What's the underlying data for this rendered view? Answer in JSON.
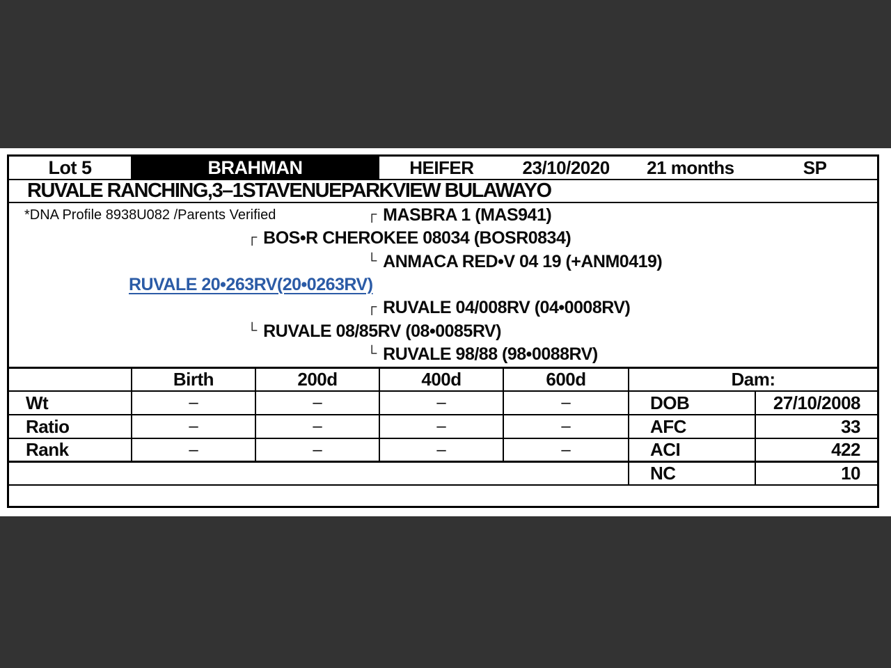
{
  "page": {
    "letterbox_color": "#333333",
    "paper_color": "#ffffff",
    "link_color": "#2b5ba6"
  },
  "header": {
    "lot": "Lot 5",
    "breed": "BRAHMAN",
    "sex": "HEIFER",
    "birth_date": "23/10/2020",
    "age": "21 months",
    "code": "SP"
  },
  "address": "RUVALE RANCHING,3–1STAVENUEPARKVIEW  BULAWAYO",
  "pedigree": {
    "dna_line": "*DNA Profile 8938U082 /Parents Verified",
    "animal": "RUVALE 20•263RV(20•0263RV)",
    "sire_sire": "MASBRA 1 (MAS941)",
    "sire": "BOS•R CHEROKEE 08034 (BOSR0834)",
    "sire_dam": "ANMACA RED•V 04 19 (+ANM0419)",
    "dam_sire": "RUVALE 04/008RV (04•0008RV)",
    "dam": "RUVALE 08/85RV (08•0085RV)",
    "dam_dam": "RUVALE 98/88 (98•0088RV)",
    "bracket_top": "┌",
    "bracket_bottom": "└"
  },
  "stats": {
    "col_headers": [
      "Birth",
      "200d",
      "400d",
      "600d"
    ],
    "dam_header": "Dam:",
    "rows": [
      {
        "label": "Wt",
        "values": [
          "–",
          "–",
          "–",
          "–"
        ]
      },
      {
        "label": "Ratio",
        "values": [
          "–",
          "–",
          "–",
          "–"
        ]
      },
      {
        "label": "Rank",
        "values": [
          "–",
          "–",
          "–",
          "–"
        ]
      }
    ],
    "dam_info": [
      {
        "label": "DOB",
        "value": "27/10/2008"
      },
      {
        "label": "AFC",
        "value": "33"
      },
      {
        "label": "ACI",
        "value": "422"
      },
      {
        "label": "NC",
        "value": "10"
      }
    ]
  }
}
